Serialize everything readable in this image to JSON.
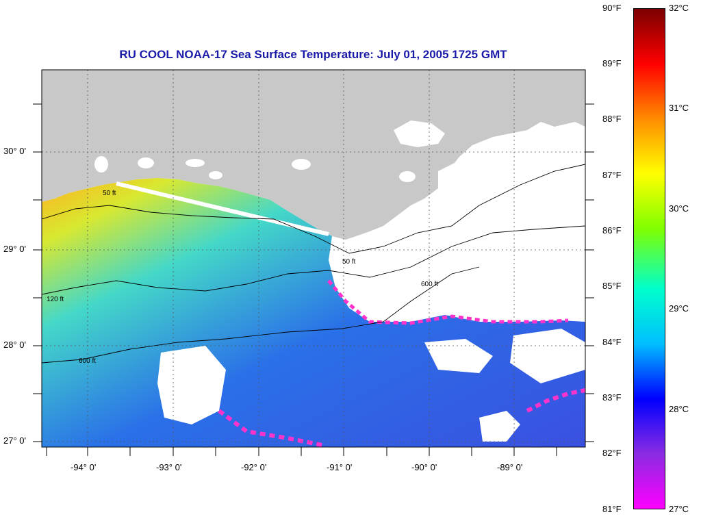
{
  "title": "RU COOL  NOAA-17  Sea Surface Temperature:  July 01, 2005 1725 GMT",
  "lat_labels": [
    "30° 0'",
    "29° 0'",
    "28° 0'",
    "27° 0'"
  ],
  "lon_labels": [
    "-94° 0'",
    "-93° 0'",
    "-92° 0'",
    "-91° 0'",
    "-90° 0'",
    "-89° 0'"
  ],
  "colorbar": {
    "fahrenheit": [
      "90°F",
      "89°F",
      "88°F",
      "87°F",
      "86°F",
      "85°F",
      "84°F",
      "83°F",
      "82°F",
      "81°F"
    ],
    "celsius": [
      "32°C",
      "31°C",
      "30°C",
      "29°C",
      "28°C",
      "27°C"
    ],
    "colors": [
      "#7a0000",
      "#ff0000",
      "#ff8c00",
      "#ffff00",
      "#7fff00",
      "#00ffcc",
      "#00bfff",
      "#0000ff",
      "#8a2be2",
      "#ff00ff"
    ]
  },
  "contour_labels": [
    "50 ft",
    "120 ft",
    "600 ft"
  ],
  "land_color": "#c8c8c8",
  "title_color": "#1a1aa8"
}
